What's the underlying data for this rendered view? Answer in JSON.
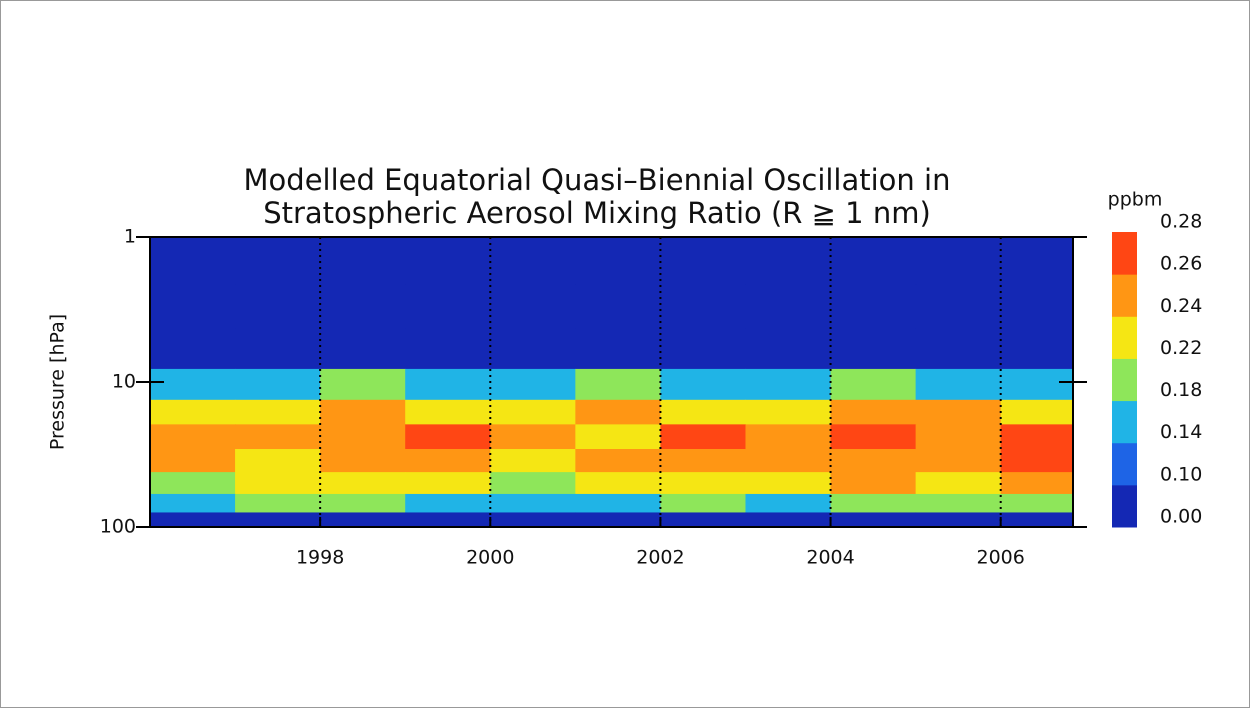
{
  "chart_data": {
    "type": "heatmap",
    "title": [
      "Modelled Equatorial Quasi–Biennial Oscillation in",
      "Stratospheric Aerosol Mixing Ratio (R ≧ 1 nm)"
    ],
    "y_label": "Pressure [hPa]",
    "x": [
      1996.5,
      1997.5,
      1998.5,
      1999.5,
      2000.5,
      2001.5,
      2002.5,
      2003.5,
      2004.5,
      2005.5,
      2006.5
    ],
    "y": [
      1.5,
      3,
      6,
      11,
      16,
      24,
      35,
      50,
      70,
      90
    ],
    "values": [
      [
        0.02,
        0.02,
        0.02,
        0.02,
        0.02,
        0.02,
        0.02,
        0.02,
        0.02,
        0.02,
        0.02
      ],
      [
        0.03,
        0.03,
        0.03,
        0.03,
        0.03,
        0.03,
        0.03,
        0.03,
        0.03,
        0.03,
        0.03
      ],
      [
        0.05,
        0.05,
        0.06,
        0.05,
        0.05,
        0.06,
        0.05,
        0.05,
        0.06,
        0.05,
        0.05
      ],
      [
        0.17,
        0.16,
        0.18,
        0.17,
        0.16,
        0.18,
        0.17,
        0.16,
        0.18,
        0.17,
        0.16
      ],
      [
        0.23,
        0.22,
        0.24,
        0.23,
        0.22,
        0.24,
        0.23,
        0.22,
        0.24,
        0.25,
        0.23
      ],
      [
        0.25,
        0.24,
        0.25,
        0.26,
        0.24,
        0.23,
        0.26,
        0.25,
        0.26,
        0.25,
        0.26
      ],
      [
        0.24,
        0.23,
        0.25,
        0.25,
        0.23,
        0.24,
        0.25,
        0.24,
        0.25,
        0.24,
        0.26
      ],
      [
        0.21,
        0.22,
        0.23,
        0.22,
        0.19,
        0.23,
        0.23,
        0.22,
        0.24,
        0.22,
        0.25
      ],
      [
        0.17,
        0.18,
        0.18,
        0.17,
        0.16,
        0.17,
        0.18,
        0.17,
        0.19,
        0.18,
        0.2
      ],
      [
        0.07,
        0.08,
        0.08,
        0.07,
        0.07,
        0.08,
        0.08,
        0.07,
        0.08,
        0.08,
        0.09
      ]
    ],
    "xlim": [
      1996,
      2006.85
    ],
    "xticks": [
      1998,
      2000,
      2002,
      2004,
      2006
    ],
    "x_grid": true,
    "ylim": [
      100,
      1
    ],
    "yticks": [
      1,
      10,
      100
    ],
    "y_scale": "log",
    "colorbar": {
      "label": "ppbm",
      "ticks": [
        {
          "value": 0,
          "label": "0.00"
        },
        {
          "value": 0.1,
          "label": "0.10"
        },
        0.14,
        0.18,
        0.22,
        0.24,
        0.26,
        0.28
      ],
      "colors": [
        "#1428b4",
        "#1e64e6",
        "#20b4e6",
        "#8ee65a",
        "#f5e614",
        "#ff9614",
        "#ff4614"
      ]
    }
  }
}
